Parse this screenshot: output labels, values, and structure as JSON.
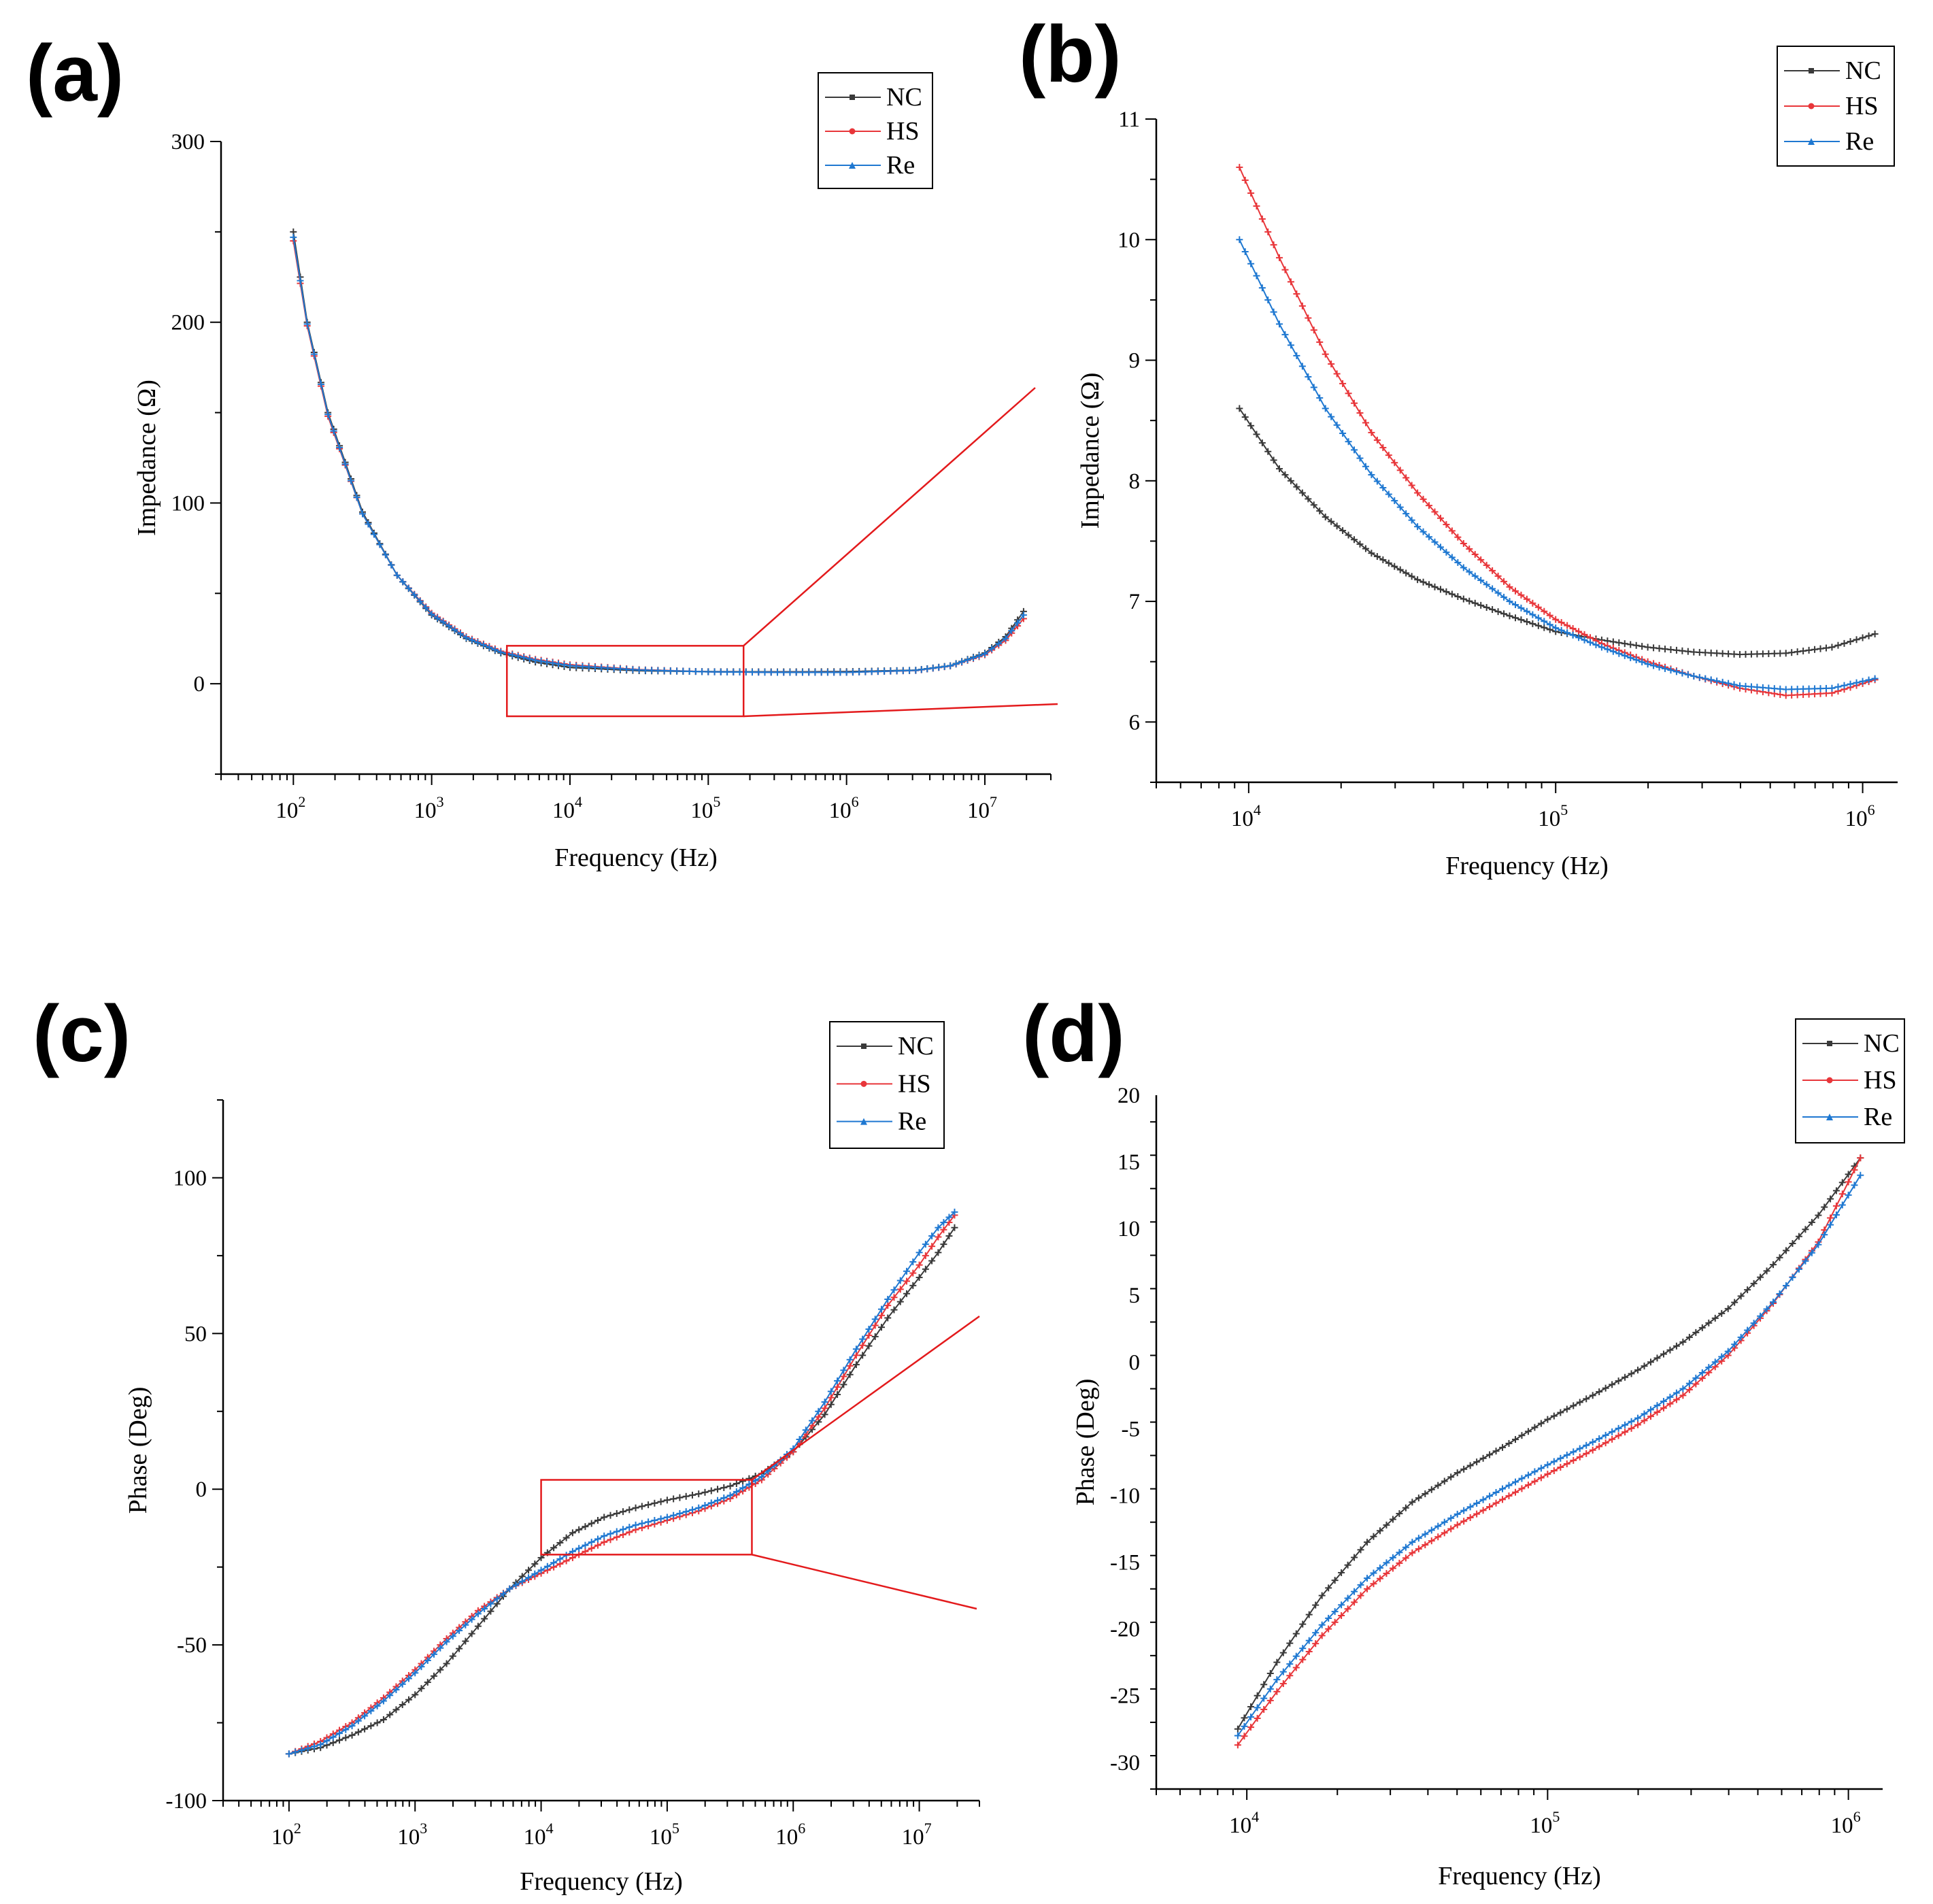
{
  "colors": {
    "NC": "#3a3a3a",
    "HS": "#e8363a",
    "Re": "#1f78d1",
    "zoom": "#e31a1c"
  },
  "chart_data": [
    {
      "id": "a",
      "type": "line",
      "panel_label": "(a)",
      "xlabel": "Frequency (Hz)",
      "ylabel": "Impedance (Ω)",
      "xscale": "log",
      "xlim": [
        30,
        30000000
      ],
      "ylim": [
        -50,
        300
      ],
      "yticks": [
        0,
        100,
        200,
        300
      ],
      "xtick_exponents": [
        "2",
        "3",
        "4",
        "5",
        "6",
        "7"
      ],
      "legend": [
        "NC",
        "HS",
        "Re"
      ],
      "legend_position": "top-right",
      "zoom_box": {
        "x": [
          3500,
          180000
        ],
        "y": [
          -18,
          21
        ]
      },
      "series": [
        {
          "name": "NC",
          "logx": [
            2,
            2.1,
            2.25,
            2.5,
            2.75,
            3,
            3.25,
            3.5,
            3.75,
            4,
            4.5,
            5,
            5.5,
            6,
            6.5,
            6.75,
            7,
            7.15,
            7.28
          ],
          "y": [
            250,
            200,
            150,
            95,
            60,
            38,
            25,
            17,
            12,
            9,
            7.2,
            6.7,
            6.6,
            6.7,
            7.5,
            10,
            17,
            26,
            40
          ]
        },
        {
          "name": "HS",
          "logx": [
            2,
            2.1,
            2.25,
            2.5,
            2.75,
            3,
            3.25,
            3.5,
            3.75,
            4,
            4.5,
            5,
            5.5,
            6,
            6.5,
            6.75,
            7,
            7.15,
            7.28
          ],
          "y": [
            245,
            198,
            148,
            94,
            60,
            39,
            26,
            18,
            13.5,
            10.5,
            7.8,
            6.6,
            6.3,
            6.3,
            7.3,
            9.8,
            16,
            24,
            36
          ]
        },
        {
          "name": "Re",
          "logx": [
            2,
            2.1,
            2.25,
            2.5,
            2.75,
            3,
            3.25,
            3.5,
            3.75,
            4,
            4.5,
            5,
            5.5,
            6,
            6.5,
            6.75,
            7,
            7.15,
            7.28
          ],
          "y": [
            247,
            199,
            149,
            94,
            60,
            38.5,
            25.5,
            17.5,
            13,
            10,
            7.6,
            6.6,
            6.3,
            6.3,
            7.4,
            9.9,
            16.5,
            25,
            38
          ]
        }
      ]
    },
    {
      "id": "b",
      "type": "line",
      "panel_label": "(b)",
      "xlabel": "Frequency (Hz)",
      "ylabel": "Impedance (Ω)",
      "xscale": "log",
      "xlim": [
        5000,
        1300000
      ],
      "ylim": [
        5.5,
        11
      ],
      "yticks": [
        6,
        7,
        8,
        9,
        10,
        11
      ],
      "xtick_exponents": [
        "4",
        "5",
        "6"
      ],
      "legend": [
        "NC",
        "HS",
        "Re"
      ],
      "legend_position": "top-right",
      "series": [
        {
          "name": "NC",
          "logx": [
            3.97,
            4.1,
            4.25,
            4.4,
            4.55,
            4.7,
            4.85,
            5,
            5.15,
            5.3,
            5.45,
            5.6,
            5.75,
            5.9,
            6.04
          ],
          "y": [
            8.6,
            8.1,
            7.7,
            7.4,
            7.18,
            7.02,
            6.88,
            6.75,
            6.68,
            6.62,
            6.58,
            6.56,
            6.57,
            6.62,
            6.73
          ]
        },
        {
          "name": "HS",
          "logx": [
            3.97,
            4.1,
            4.25,
            4.4,
            4.55,
            4.7,
            4.85,
            5,
            5.15,
            5.3,
            5.45,
            5.6,
            5.75,
            5.9,
            6.04
          ],
          "y": [
            10.6,
            9.85,
            9.05,
            8.4,
            7.9,
            7.48,
            7.12,
            6.85,
            6.65,
            6.5,
            6.38,
            6.28,
            6.22,
            6.24,
            6.35
          ]
        },
        {
          "name": "Re",
          "logx": [
            3.97,
            4.1,
            4.25,
            4.4,
            4.55,
            4.7,
            4.85,
            5,
            5.15,
            5.3,
            5.45,
            5.6,
            5.75,
            5.9,
            6.04
          ],
          "y": [
            10.0,
            9.3,
            8.6,
            8.05,
            7.62,
            7.28,
            7.0,
            6.78,
            6.62,
            6.48,
            6.38,
            6.3,
            6.27,
            6.28,
            6.36
          ]
        }
      ]
    },
    {
      "id": "c",
      "type": "line",
      "panel_label": "(c)",
      "xlabel": "Frequency (Hz)",
      "ylabel": "Phase (Deg)",
      "xscale": "log",
      "xlim": [
        30,
        30000000
      ],
      "ylim": [
        -100,
        125
      ],
      "yticks": [
        -100,
        -50,
        0,
        50,
        100
      ],
      "xtick_exponents": [
        "2",
        "3",
        "4",
        "5",
        "6",
        "7"
      ],
      "legend": [
        "NC",
        "HS",
        "Re"
      ],
      "legend_position": "top-right",
      "zoom_box": {
        "x": [
          10000,
          470000
        ],
        "y": [
          -21,
          3
        ]
      },
      "series": [
        {
          "name": "NC",
          "logx": [
            2,
            2.25,
            2.5,
            2.75,
            3,
            3.25,
            3.5,
            3.75,
            4,
            4.25,
            4.5,
            4.75,
            5,
            5.25,
            5.5,
            5.75,
            6,
            6.25,
            6.5,
            6.75,
            7,
            7.15,
            7.28
          ],
          "y": [
            -85,
            -83,
            -79,
            -74,
            -66,
            -56,
            -44,
            -32,
            -22,
            -14,
            -9,
            -6,
            -3.5,
            -1.5,
            1,
            5,
            12,
            24,
            40,
            55,
            68,
            76,
            84
          ]
        },
        {
          "name": "HS",
          "logx": [
            2,
            2.25,
            2.5,
            2.75,
            3,
            3.25,
            3.5,
            3.75,
            4,
            4.25,
            4.5,
            4.75,
            5,
            5.25,
            5.5,
            5.75,
            6,
            6.25,
            6.5,
            6.75,
            7,
            7.15,
            7.28
          ],
          "y": [
            -85,
            -81,
            -75,
            -67,
            -58,
            -48,
            -39,
            -32,
            -27,
            -22,
            -17,
            -13,
            -10,
            -7,
            -3,
            3,
            12,
            26,
            43,
            59,
            72,
            81,
            88
          ]
        },
        {
          "name": "Re",
          "logx": [
            2,
            2.25,
            2.5,
            2.75,
            3,
            3.25,
            3.5,
            3.75,
            4,
            4.25,
            4.5,
            4.75,
            5,
            5.25,
            5.5,
            5.75,
            6,
            6.25,
            6.5,
            6.75,
            7,
            7.15,
            7.28
          ],
          "y": [
            -85,
            -82,
            -76,
            -68,
            -59,
            -49,
            -40,
            -32,
            -26,
            -20,
            -15,
            -11.5,
            -9,
            -6,
            -2,
            4,
            13,
            28,
            45,
            61,
            76,
            84,
            89
          ]
        }
      ]
    },
    {
      "id": "d",
      "type": "line",
      "panel_label": "(d)",
      "xlabel": "Frequency (Hz)",
      "ylabel": "Phase (Deg)",
      "xscale": "log",
      "xlim": [
        5000,
        1300000
      ],
      "ylim": [
        -32,
        20
      ],
      "yticks": [
        -30,
        -25,
        -20,
        -15,
        -10,
        -5,
        0,
        5,
        10,
        15,
        20
      ],
      "xtick_exponents": [
        "4",
        "5",
        "6"
      ],
      "legend": [
        "NC",
        "HS",
        "Re"
      ],
      "legend_position": "top-right",
      "series": [
        {
          "name": "NC",
          "logx": [
            3.97,
            4.1,
            4.25,
            4.4,
            4.55,
            4.7,
            4.85,
            5,
            5.15,
            5.3,
            5.45,
            5.6,
            5.75,
            5.9,
            6.04
          ],
          "y": [
            -27.5,
            -22.5,
            -17.5,
            -13.5,
            -10.5,
            -8.3,
            -6.4,
            -4.3,
            -2.5,
            -0.6,
            1.5,
            4,
            7.3,
            11,
            15.3
          ]
        },
        {
          "name": "HS",
          "logx": [
            3.97,
            4.1,
            4.25,
            4.4,
            4.55,
            4.7,
            4.85,
            5,
            5.15,
            5.3,
            5.45,
            5.6,
            5.75,
            5.9,
            6.04
          ],
          "y": [
            -28.7,
            -24.7,
            -20.5,
            -17.0,
            -14.3,
            -12.2,
            -10.3,
            -8.4,
            -6.6,
            -4.7,
            -2.5,
            0.5,
            4.4,
            9,
            15.3
          ]
        },
        {
          "name": "Re",
          "logx": [
            3.97,
            4.1,
            4.25,
            4.4,
            4.55,
            4.7,
            4.85,
            5,
            5.15,
            5.3,
            5.45,
            5.6,
            5.75,
            5.9,
            6.04
          ],
          "y": [
            -28,
            -23.8,
            -19.7,
            -16.2,
            -13.5,
            -11.4,
            -9.5,
            -7.7,
            -6.0,
            -4.2,
            -2.0,
            0.8,
            4.5,
            8.8,
            14.0
          ]
        }
      ]
    }
  ]
}
